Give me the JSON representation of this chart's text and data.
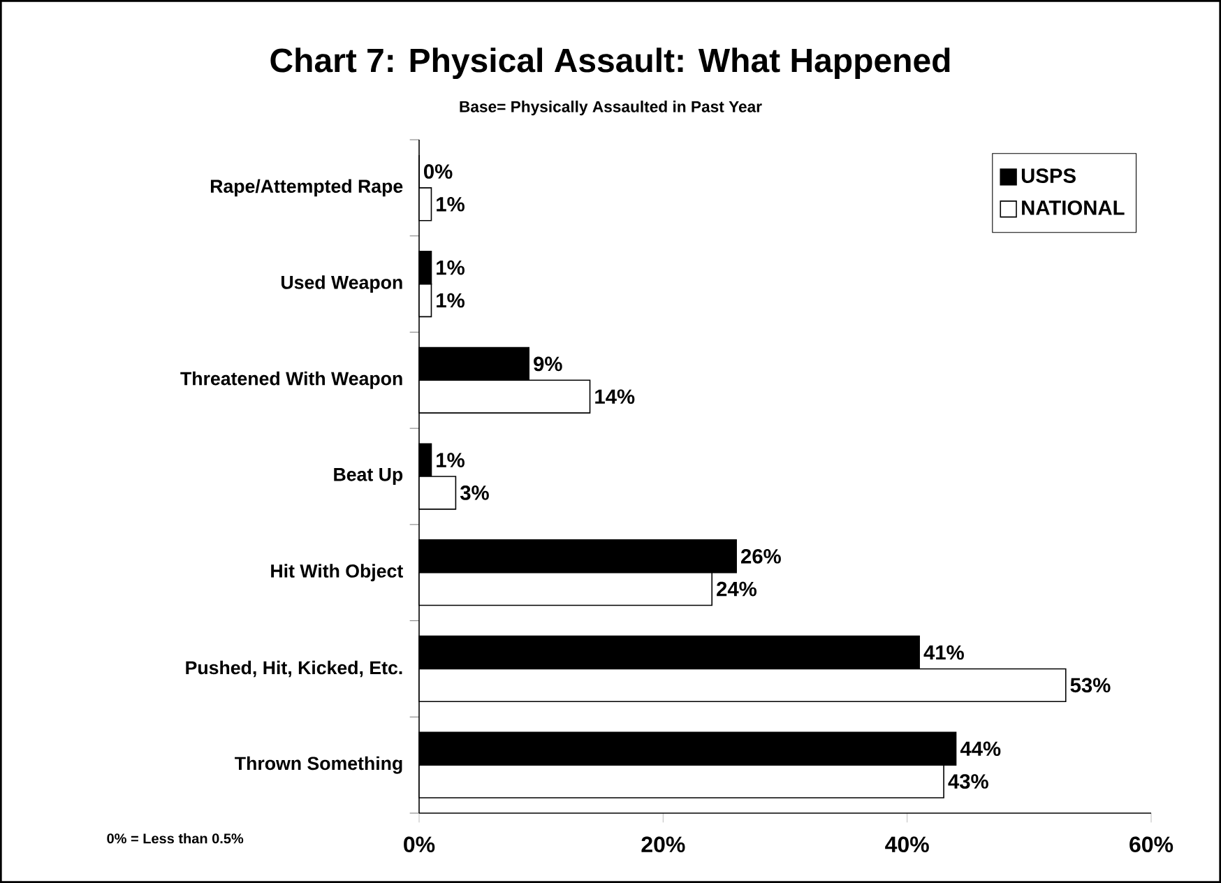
{
  "chart_data": {
    "type": "bar",
    "orientation": "horizontal",
    "title": "Chart 7: Physical Assault: What Happened",
    "subtitle": "Base= Physically Assaulted in Past Year",
    "categories": [
      "Rape/Attempted Rape",
      "Used Weapon",
      "Threatened With Weapon",
      "Beat Up",
      "Hit With Object",
      "Pushed, Hit, Kicked, Etc.",
      "Thrown Something"
    ],
    "series": [
      {
        "name": "USPS",
        "color": "#000000",
        "values": [
          0,
          1,
          9,
          1,
          26,
          41,
          44
        ],
        "value_labels": [
          "0%",
          "1%",
          "9%",
          "1%",
          "26%",
          "41%",
          "44%"
        ]
      },
      {
        "name": "NATIONAL",
        "color": "#ffffff",
        "values": [
          1,
          1,
          14,
          3,
          24,
          53,
          43
        ],
        "value_labels": [
          "1%",
          "1%",
          "14%",
          "3%",
          "24%",
          "53%",
          "43%"
        ]
      }
    ],
    "xlim": [
      0,
      60
    ],
    "xticks": [
      {
        "value": 0,
        "label": "0%"
      },
      {
        "value": 20,
        "label": "20%"
      },
      {
        "value": 40,
        "label": "40%"
      },
      {
        "value": 60,
        "label": "60%"
      }
    ],
    "legend": "top right",
    "annotations": [
      "0% = Less than 0.5%"
    ]
  }
}
